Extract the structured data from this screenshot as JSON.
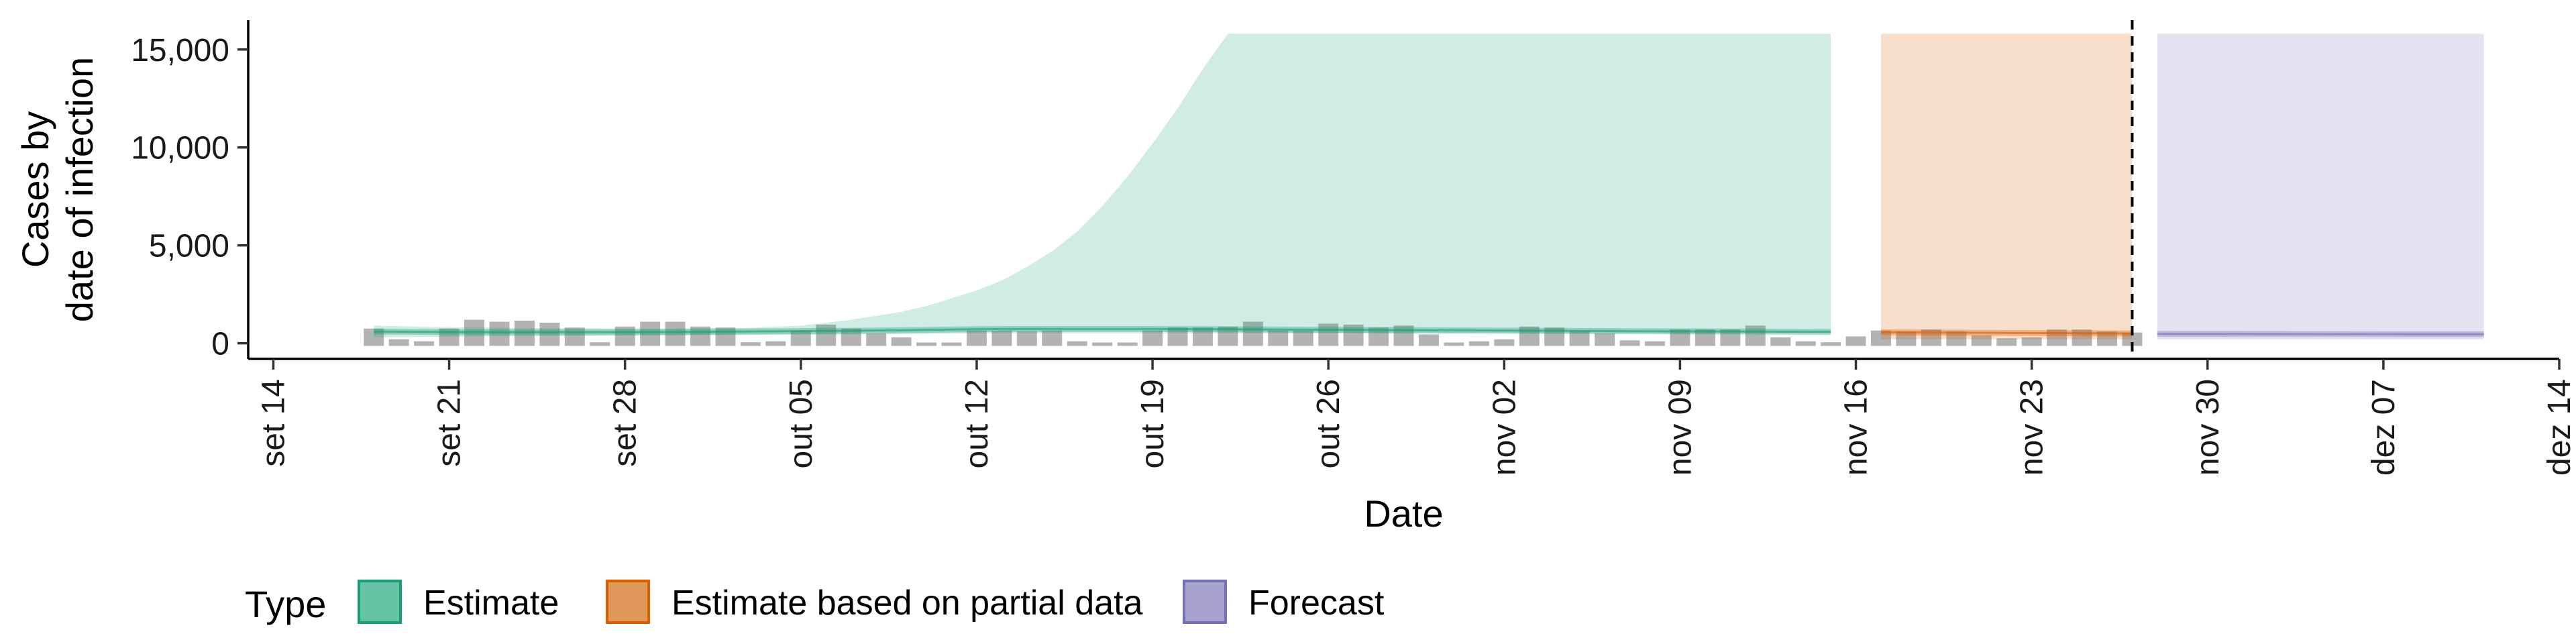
{
  "chart_data": {
    "type": "area",
    "xlabel": "Date",
    "ylabel_lines": [
      "Cases by",
      "date of infection"
    ],
    "x_ticks": [
      {
        "date": "2020-09-14",
        "label": "set 14"
      },
      {
        "date": "2020-09-21",
        "label": "set 21"
      },
      {
        "date": "2020-09-28",
        "label": "set 28"
      },
      {
        "date": "2020-10-05",
        "label": "out 05"
      },
      {
        "date": "2020-10-12",
        "label": "out 12"
      },
      {
        "date": "2020-10-19",
        "label": "out 19"
      },
      {
        "date": "2020-10-26",
        "label": "out 26"
      },
      {
        "date": "2020-11-02",
        "label": "nov 02"
      },
      {
        "date": "2020-11-09",
        "label": "nov 09"
      },
      {
        "date": "2020-11-16",
        "label": "nov 16"
      },
      {
        "date": "2020-11-23",
        "label": "nov 23"
      },
      {
        "date": "2020-11-30",
        "label": "nov 30"
      },
      {
        "date": "2020-12-07",
        "label": "dez 07"
      },
      {
        "date": "2020-12-14",
        "label": "dez 14"
      }
    ],
    "y_ticks": [
      {
        "value": 0,
        "label": "0"
      },
      {
        "value": 5000,
        "label": "5,000"
      },
      {
        "value": 10000,
        "label": "10,000"
      },
      {
        "value": 15000,
        "label": "15,000"
      }
    ],
    "xlim": [
      "2020-09-13",
      "2020-12-14"
    ],
    "ylim": [
      -800,
      16500
    ],
    "grid": false,
    "legend_position": "bottom",
    "legend_title": "Type",
    "legend": [
      {
        "label": "Estimate",
        "fill": "#66C2A5",
        "stroke": "#1B9E77"
      },
      {
        "label": "Estimate based on partial data",
        "fill": "#E0975A",
        "stroke": "#D95F02"
      },
      {
        "label": "Forecast",
        "fill": "#A7A3CE",
        "stroke": "#7570B3"
      }
    ],
    "vline_date": "2020-11-27",
    "bars": {
      "color": "#b3b3b3",
      "dates": [
        "2020-09-18",
        "2020-09-19",
        "2020-09-20",
        "2020-09-21",
        "2020-09-22",
        "2020-09-23",
        "2020-09-24",
        "2020-09-25",
        "2020-09-26",
        "2020-09-27",
        "2020-09-28",
        "2020-09-29",
        "2020-09-30",
        "2020-10-01",
        "2020-10-02",
        "2020-10-03",
        "2020-10-04",
        "2020-10-05",
        "2020-10-06",
        "2020-10-07",
        "2020-10-08",
        "2020-10-09",
        "2020-10-10",
        "2020-10-11",
        "2020-10-12",
        "2020-10-13",
        "2020-10-14",
        "2020-10-15",
        "2020-10-16",
        "2020-10-17",
        "2020-10-18",
        "2020-10-19",
        "2020-10-20",
        "2020-10-21",
        "2020-10-22",
        "2020-10-23",
        "2020-10-24",
        "2020-10-25",
        "2020-10-26",
        "2020-10-27",
        "2020-10-28",
        "2020-10-29",
        "2020-10-30",
        "2020-10-31",
        "2020-11-01",
        "2020-11-02",
        "2020-11-03",
        "2020-11-04",
        "2020-11-05",
        "2020-11-06",
        "2020-11-07",
        "2020-11-08",
        "2020-11-09",
        "2020-11-10",
        "2020-11-11",
        "2020-11-12",
        "2020-11-13",
        "2020-11-14",
        "2020-11-15",
        "2020-11-16",
        "2020-11-17",
        "2020-11-18",
        "2020-11-19",
        "2020-11-20",
        "2020-11-21",
        "2020-11-22",
        "2020-11-23",
        "2020-11-24",
        "2020-11-25",
        "2020-11-26",
        "2020-11-27"
      ],
      "values": [
        750,
        200,
        100,
        750,
        1200,
        1100,
        1150,
        1050,
        800,
        50,
        850,
        1100,
        1100,
        850,
        800,
        50,
        100,
        650,
        950,
        750,
        500,
        300,
        0,
        0,
        650,
        650,
        600,
        650,
        100,
        0,
        0,
        650,
        800,
        800,
        850,
        1100,
        650,
        650,
        1000,
        950,
        800,
        900,
        450,
        0,
        100,
        200,
        850,
        800,
        650,
        500,
        150,
        100,
        700,
        700,
        700,
        900,
        300,
        100,
        50,
        350,
        650,
        600,
        700,
        600,
        400,
        250,
        300,
        700,
        700,
        600,
        550
      ]
    },
    "series": [
      {
        "key": "estimate",
        "fill": "#1B9E77",
        "dates": [
          "2020-09-18",
          "2020-09-21",
          "2020-09-24",
          "2020-09-27",
          "2020-09-30",
          "2020-10-03",
          "2020-10-05",
          "2020-10-07",
          "2020-10-09",
          "2020-10-10",
          "2020-10-11",
          "2020-10-12",
          "2020-10-13",
          "2020-10-14",
          "2020-10-15",
          "2020-10-16",
          "2020-10-17",
          "2020-10-18",
          "2020-10-19",
          "2020-10-20",
          "2020-10-21",
          "2020-10-22",
          "2020-10-27",
          "2020-11-01",
          "2020-11-06",
          "2020-11-11",
          "2020-11-15"
        ],
        "upper": [
          900,
          820,
          780,
          760,
          760,
          790,
          900,
          1200,
          1600,
          1900,
          2300,
          2700,
          3200,
          3900,
          4700,
          5700,
          7000,
          8500,
          10200,
          12000,
          14000,
          15800,
          15800,
          15800,
          15800,
          15800,
          15800
        ],
        "lower": [
          300,
          330,
          360,
          380,
          400,
          420,
          430,
          450,
          470,
          480,
          490,
          500,
          500,
          500,
          500,
          500,
          500,
          500,
          500,
          500,
          500,
          500,
          500,
          500,
          500,
          500,
          500
        ],
        "mean": [
          600,
          570,
          560,
          560,
          570,
          600,
          620,
          640,
          660,
          680,
          700,
          720,
          730,
          730,
          730,
          730,
          730,
          730,
          730,
          720,
          720,
          710,
          680,
          650,
          620,
          600,
          580
        ]
      },
      {
        "key": "partial",
        "fill": "#D95F02",
        "dates": [
          "2020-11-17",
          "2020-11-20",
          "2020-11-23",
          "2020-11-27"
        ],
        "upper": [
          15800,
          15800,
          15800,
          15800
        ],
        "lower": [
          200,
          200,
          200,
          200
        ],
        "mean": [
          560,
          540,
          520,
          500
        ]
      },
      {
        "key": "forecast",
        "fill": "#7570B3",
        "dates": [
          "2020-11-28",
          "2020-12-03",
          "2020-12-08",
          "2020-12-11"
        ],
        "upper": [
          15800,
          15800,
          15800,
          15800
        ],
        "lower": [
          200,
          200,
          200,
          200
        ],
        "mean": [
          480,
          470,
          460,
          460
        ]
      }
    ]
  }
}
